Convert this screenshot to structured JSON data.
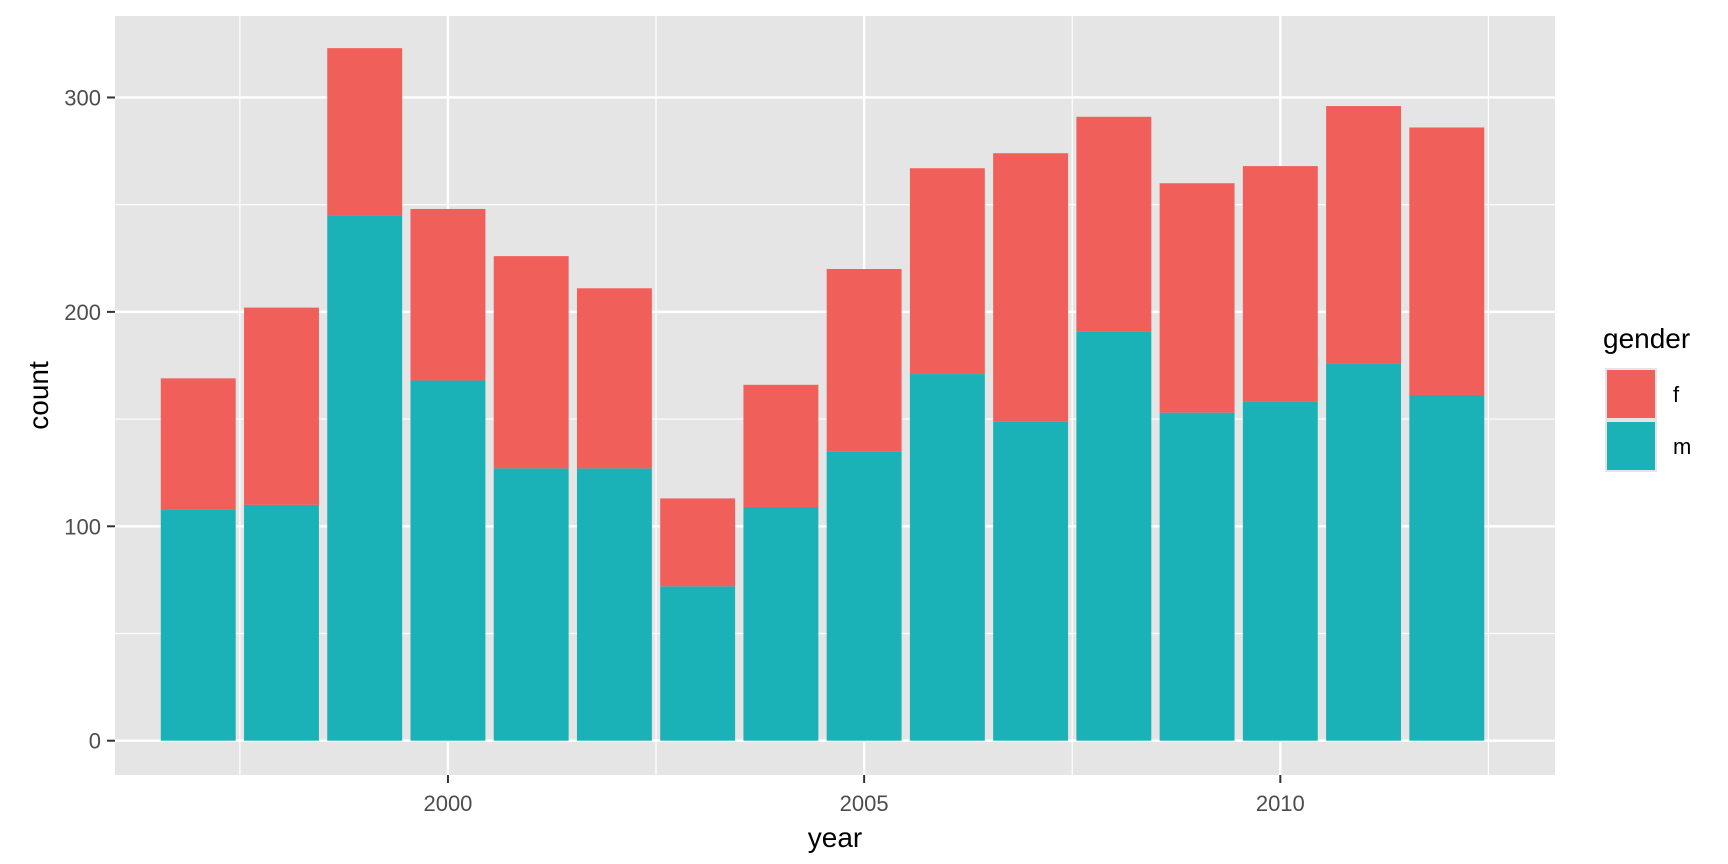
{
  "chart_data": {
    "type": "bar",
    "stacked": true,
    "xlabel": "year",
    "ylabel": "count",
    "categories": [
      1997,
      1998,
      1999,
      2000,
      2001,
      2002,
      2003,
      2004,
      2005,
      2006,
      2007,
      2008,
      2009,
      2010,
      2011,
      2012
    ],
    "x_ticks": [
      "2000",
      "2005",
      "2010"
    ],
    "x_tick_values": [
      2000,
      2005,
      2010
    ],
    "y_ticks": [
      "0",
      "100",
      "200",
      "300"
    ],
    "y_tick_values": [
      0,
      100,
      200,
      300
    ],
    "xlim": [
      1996,
      2013.3
    ],
    "ylim": [
      -16,
      338
    ],
    "grid": true,
    "legend": {
      "title": "gender",
      "position": "right",
      "entries": [
        "f",
        "m"
      ]
    },
    "series": [
      {
        "name": "m",
        "color": "#1ab2b6",
        "values": [
          108,
          110,
          245,
          168,
          127,
          127,
          72,
          109,
          135,
          171,
          149,
          191,
          153,
          158,
          176,
          161
        ]
      },
      {
        "name": "f",
        "color": "#f15f5a",
        "values": [
          61,
          92,
          78,
          80,
          99,
          84,
          41,
          57,
          85,
          96,
          125,
          100,
          107,
          110,
          120,
          125
        ]
      }
    ],
    "colors": {
      "panel_background": "#e5e5e5",
      "grid": "#ffffff"
    }
  }
}
